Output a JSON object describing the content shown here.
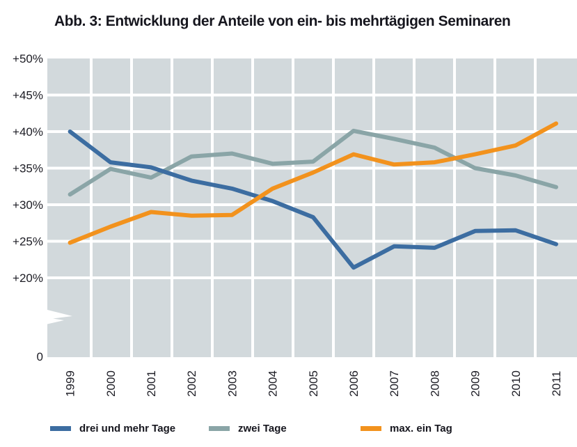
{
  "title": "Abb. 3: Entwicklung der Anteile von ein- bis mehrtägigen Seminaren",
  "colors": {
    "background": "#d2d9dc",
    "gridline": "#ffffff",
    "blue": "#3c6da1",
    "gray": "#8aa5a7",
    "orange": "#f2921d",
    "text": "#1c1c24"
  },
  "chart_data": {
    "type": "line",
    "x": [
      "1999",
      "2000",
      "2001",
      "2002",
      "2003",
      "2004",
      "2005",
      "2006",
      "2007",
      "2008",
      "2009",
      "2010",
      "2011"
    ],
    "series": [
      {
        "name": "drei und mehr Tage",
        "color_key": "blue",
        "values": [
          40.0,
          35.8,
          35.1,
          33.3,
          32.2,
          30.5,
          28.3,
          21.4,
          24.3,
          24.1,
          26.4,
          26.5,
          24.6
        ]
      },
      {
        "name": "zwei Tage",
        "color_key": "gray",
        "values": [
          31.4,
          34.9,
          33.7,
          36.6,
          37.0,
          35.6,
          35.9,
          40.1,
          39.0,
          37.8,
          35.0,
          34.0,
          32.4
        ]
      },
      {
        "name": "max. ein Tag",
        "color_key": "orange",
        "values": [
          24.8,
          27.0,
          29.0,
          28.5,
          28.6,
          32.2,
          34.4,
          36.9,
          35.5,
          35.8,
          36.9,
          38.1,
          41.1
        ]
      }
    ],
    "y_ticks": [
      "+50%",
      "+45%",
      "+40%",
      "+35%",
      "+30%",
      "+25%",
      "+20%"
    ],
    "y_tick_values": [
      50,
      45,
      40,
      35,
      30,
      25,
      20
    ],
    "zero_label": "0",
    "axis_break": true,
    "ylim": [
      20,
      50
    ],
    "grid": true,
    "legend_position": "bottom"
  }
}
